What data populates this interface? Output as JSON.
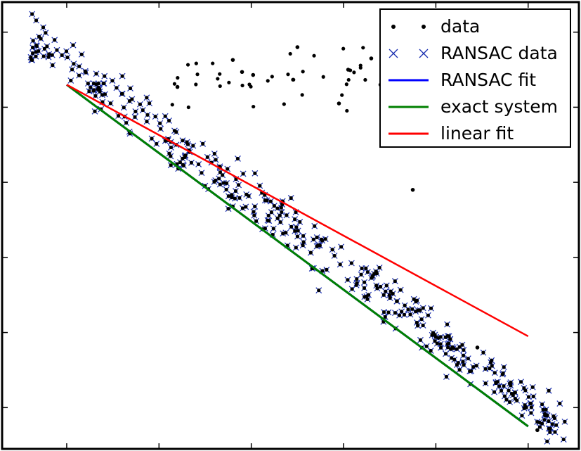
{
  "chart_data": {
    "type": "scatter",
    "title": "",
    "xlabel": "",
    "ylabel": "",
    "xlim": [
      -3.6,
      2.65
    ],
    "ylim": [
      -3.55,
      2.4
    ],
    "grid": false,
    "tick_labels_shown": false,
    "legend": {
      "position": "top-right",
      "entries": [
        "data",
        "RANSAC data",
        "RANSAC fit",
        "exact system",
        "linear fit"
      ]
    },
    "colors": {
      "data": "#000000",
      "ransac_data": "#1a2fb0",
      "ransac_fit": "#0000ff",
      "exact_system": "#008000",
      "linear_fit": "#ff0000"
    },
    "series": [
      {
        "name": "data",
        "kind": "points",
        "note_x_y_pairs": "outliers only; inliers coincide with RANSAC data markers",
        "points": [
          [
            -1.7,
            1.27
          ],
          [
            -1.1,
            1.63
          ],
          [
            -1.0,
            1.47
          ],
          [
            -0.88,
            1.43
          ],
          [
            -0.4,
            1.8
          ],
          [
            0.05,
            1.05
          ],
          [
            0.15,
            1.5
          ],
          [
            0.4,
            1.65
          ],
          [
            0.5,
            1.3
          ],
          [
            0.8,
            0.95
          ],
          [
            1.0,
            1.45
          ],
          [
            1.1,
            1.25
          ],
          [
            1.3,
            1.15
          ],
          [
            1.45,
            1.75
          ],
          [
            0.85,
            -0.1
          ],
          [
            1.55,
            -2.2
          ],
          [
            2.2,
            -3.3
          ]
        ],
        "count": 100
      },
      {
        "name": "RANSAC data",
        "kind": "points",
        "count": 400,
        "x_range": [
          -3.3,
          2.5
        ],
        "trend": "y ≈ -0.91·x − 1.05 with noise sd ≈ 0.25"
      },
      {
        "name": "RANSAC fit",
        "kind": "line",
        "x": [
          -2.9,
          2.1
        ],
        "y": [
          1.3,
          -3.25
        ]
      },
      {
        "name": "exact system",
        "kind": "line",
        "x": [
          -2.9,
          2.1
        ],
        "y": [
          1.3,
          -3.25
        ]
      },
      {
        "name": "linear fit",
        "kind": "line",
        "x": [
          -2.9,
          2.1
        ],
        "y": [
          1.3,
          -2.05
        ]
      }
    ]
  }
}
